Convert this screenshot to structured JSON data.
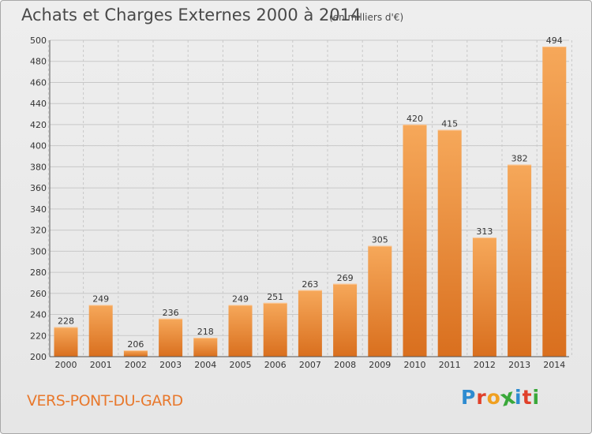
{
  "header": {
    "title": "Achats et Charges Externes 2000 à 2014",
    "unit": "(en milliers d'€)"
  },
  "footer": {
    "commune": "VERS-PONT-DU-GARD",
    "logo_letters": [
      "P",
      "r",
      "o",
      "x",
      "i",
      "t",
      "i"
    ],
    "logo_colors": [
      "#2e8bd0",
      "#e0402a",
      "#f0a020",
      "#3aa83a",
      "#2e8bd0",
      "#e0402a",
      "#3aa83a"
    ]
  },
  "colors": {
    "bar_light": "#f6a85a",
    "bar_dark": "#d96f1e",
    "grid": "#c8c8c8",
    "text": "#333333"
  },
  "chart_data": {
    "type": "bar",
    "title": "Achats et Charges Externes 2000 à 2014",
    "subtitle": "(en milliers d'€)",
    "categories": [
      "2000",
      "2001",
      "2002",
      "2003",
      "2004",
      "2005",
      "2006",
      "2007",
      "2008",
      "2009",
      "2010",
      "2011",
      "2012",
      "2013",
      "2014"
    ],
    "values": [
      228,
      249,
      206,
      236,
      218,
      249,
      251,
      263,
      269,
      305,
      420,
      415,
      313,
      382,
      494
    ],
    "ylim": [
      200,
      500
    ],
    "yticks": [
      200,
      220,
      240,
      260,
      280,
      300,
      320,
      340,
      360,
      380,
      400,
      420,
      440,
      460,
      480,
      500
    ],
    "grid": true,
    "data_labels": true
  }
}
